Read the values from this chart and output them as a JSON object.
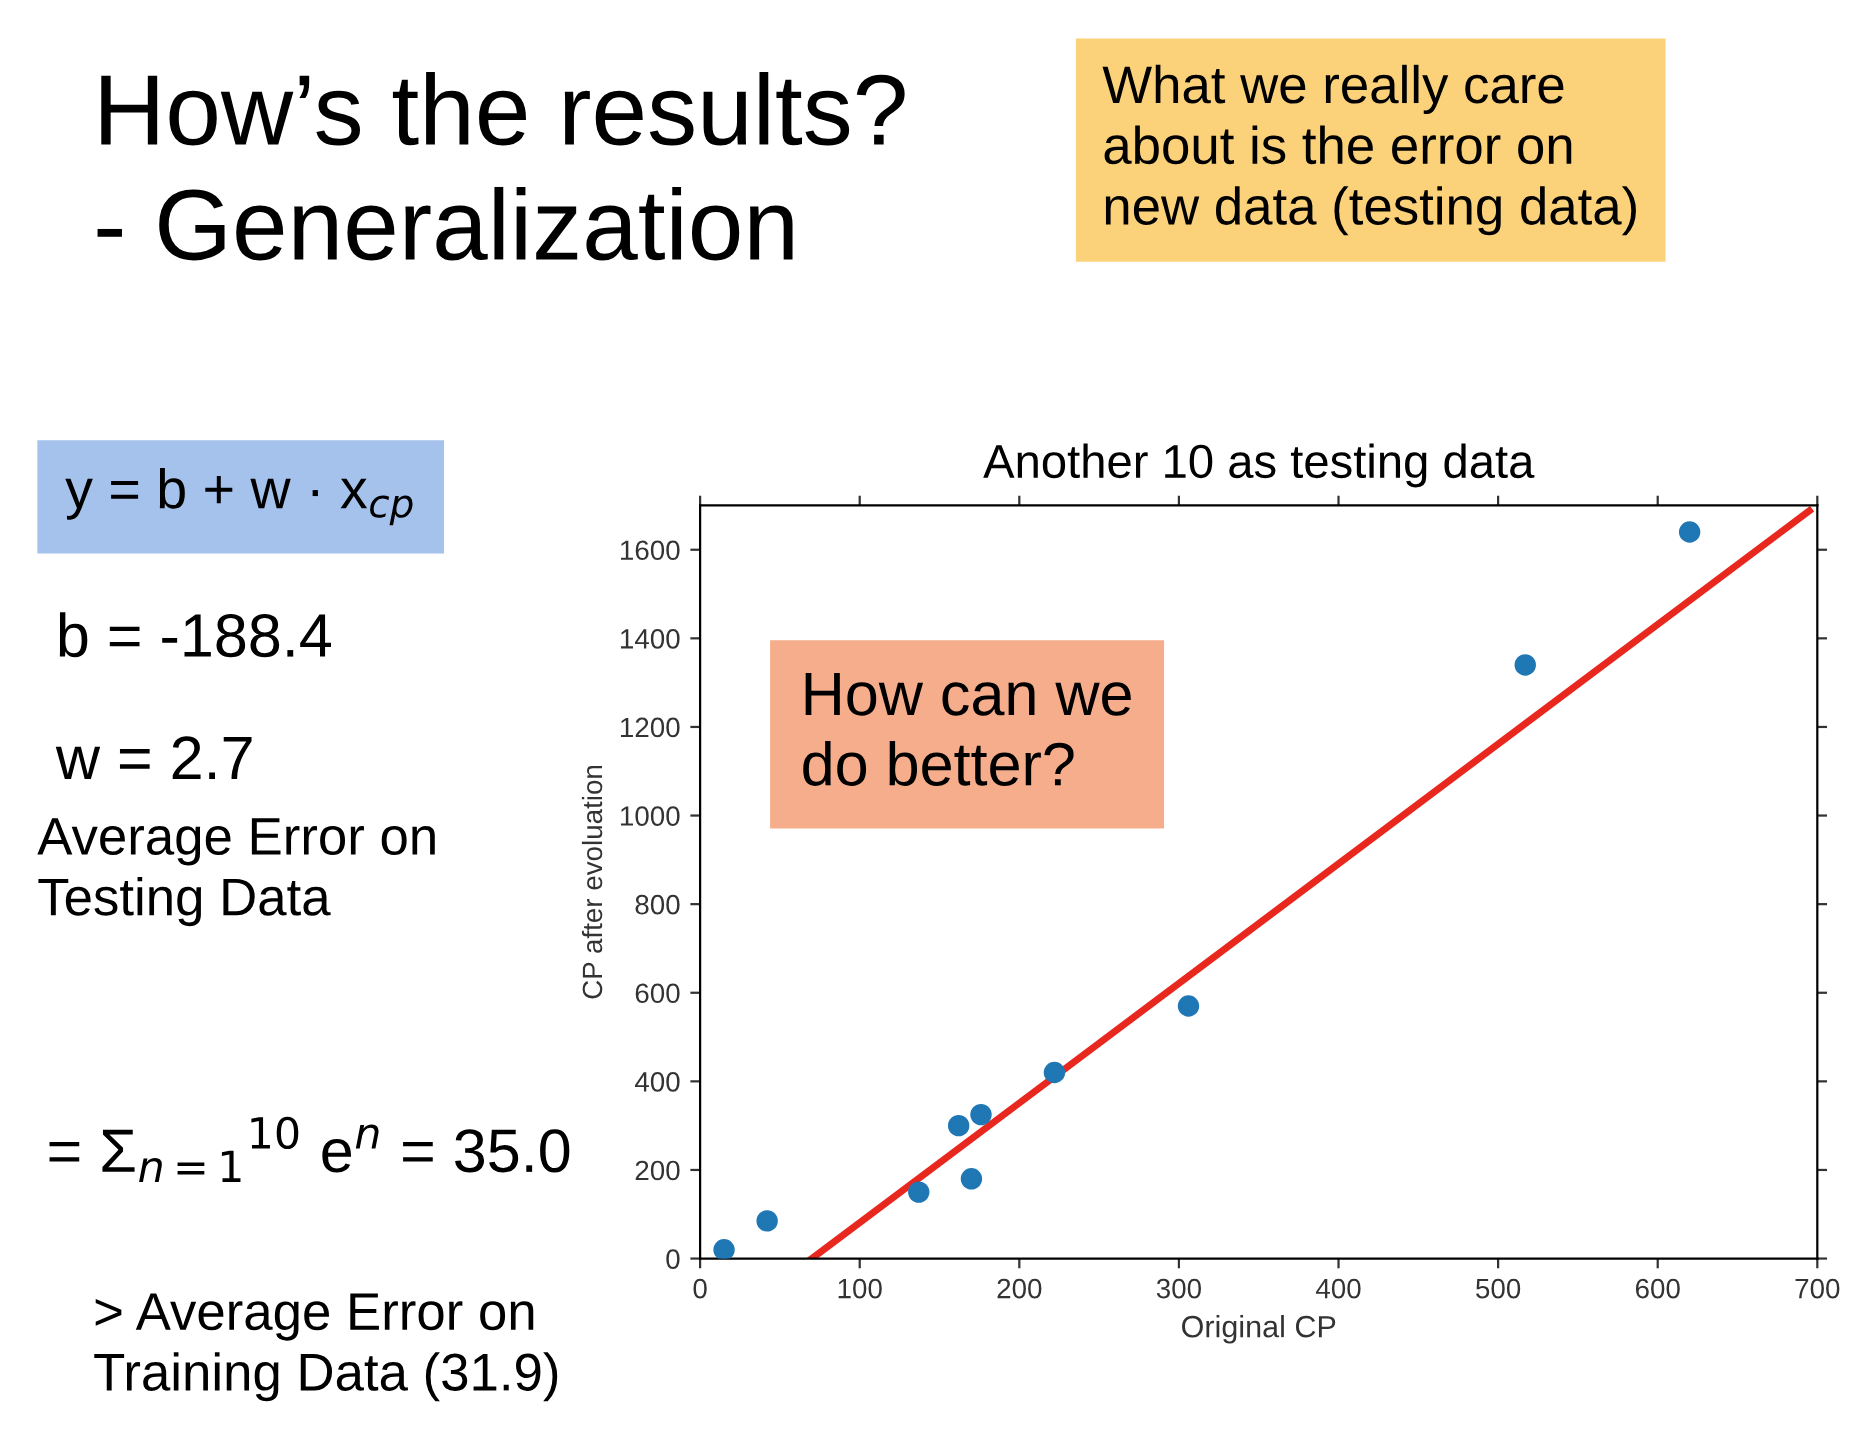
{
  "chart_data": {
    "type": "scatter",
    "title": "Another 10 as testing data",
    "xlabel": "Original CP",
    "ylabel": "CP after evoluation",
    "annotations": [
      "How’s the results?\n- Generalization",
      "What we really care\nabout is the error on\nnew data (testing data)",
      "y = b + w · x$_{cp}$",
      "b = -188.4",
      "w = 2.7",
      "Average Error on\nTesting Data",
      "= Σ$_{n=1}$$^{10}$ e$^{n}$ = 35.0",
      "> Average Error on\nTraining Data (31.9)",
      "How can we\ndo better?"
    ],
    "series": [
      {
        "marker": "circle",
        "color": "#1f77b4",
        "x": [
          15,
          42,
          137,
          162,
          170,
          176,
          222,
          306,
          517,
          620
        ],
        "values": [
          20,
          85,
          150,
          300,
          180,
          325,
          420,
          570,
          1340,
          1640
        ]
      },
      {
        "type": "line",
        "color": "#e8281e",
        "x": [
          70,
          695
        ],
        "values": [
          0,
          1688
        ]
      }
    ],
    "xlim": [
      0,
      700
    ],
    "ylim": [
      0,
      1700
    ],
    "xticks": [
      0,
      100,
      200,
      300,
      400,
      500,
      600,
      700
    ],
    "yticks": [
      0,
      200,
      400,
      600,
      800,
      1000,
      1200,
      1400,
      1600
    ],
    "grid": false
  }
}
